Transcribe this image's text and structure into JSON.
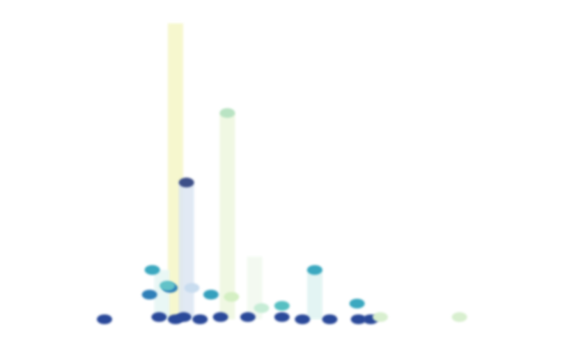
{
  "chart_data": {
    "type": "scatter",
    "title": "",
    "xlabel": "",
    "ylabel": "",
    "xlim": [
      0,
      35
    ],
    "ylim": [
      -0.3,
      7
    ],
    "grid": false,
    "legend": "none",
    "y_tick_count": 8,
    "x_tick_values": [
      5,
      15,
      25,
      35
    ],
    "points": [
      {
        "x": 5.0,
        "y": 0.0,
        "color": "#2a4a9a"
      },
      {
        "x": 8.5,
        "y": 1.1,
        "color": "#3aa8c0"
      },
      {
        "x": 8.3,
        "y": 0.55,
        "color": "#2e7fb8"
      },
      {
        "x": 9.0,
        "y": 0.05,
        "color": "#2a4a9a"
      },
      {
        "x": 9.8,
        "y": 0.7,
        "color": "#2e7fb8"
      },
      {
        "x": 9.6,
        "y": 0.75,
        "color": "#62c2c8"
      },
      {
        "x": 10.2,
        "y": 0.0,
        "color": "#2a4a9a"
      },
      {
        "x": 10.8,
        "y": 0.05,
        "color": "#2a4a9a"
      },
      {
        "x": 11.0,
        "y": 3.05,
        "color": "#3c4f88"
      },
      {
        "x": 11.4,
        "y": 0.7,
        "color": "#c8dcef"
      },
      {
        "x": 12.0,
        "y": 0.0,
        "color": "#2a4a9a"
      },
      {
        "x": 12.8,
        "y": 0.55,
        "color": "#35a0bd"
      },
      {
        "x": 13.5,
        "y": 0.05,
        "color": "#2a4a9a"
      },
      {
        "x": 14.0,
        "y": 4.6,
        "color": "#b9e3c3"
      },
      {
        "x": 14.3,
        "y": 0.5,
        "color": "#d4efc3"
      },
      {
        "x": 15.5,
        "y": 0.05,
        "color": "#2a4a9a"
      },
      {
        "x": 16.5,
        "y": 0.25,
        "color": "#c6ecd6"
      },
      {
        "x": 18.0,
        "y": 0.05,
        "color": "#2a4a9a"
      },
      {
        "x": 18.0,
        "y": 0.3,
        "color": "#56bfc2"
      },
      {
        "x": 19.5,
        "y": 0.0,
        "color": "#2a4a9a"
      },
      {
        "x": 20.4,
        "y": 1.1,
        "color": "#3aa8c0"
      },
      {
        "x": 21.5,
        "y": 0.0,
        "color": "#2a4a9a"
      },
      {
        "x": 23.5,
        "y": 0.35,
        "color": "#3aa8c0"
      },
      {
        "x": 23.6,
        "y": 0.0,
        "color": "#2a4a9a"
      },
      {
        "x": 24.5,
        "y": 0.0,
        "color": "#2a4a9a"
      },
      {
        "x": 25.2,
        "y": 0.05,
        "color": "#d8efcf"
      },
      {
        "x": 31.0,
        "y": 0.05,
        "color": "#d8efcf"
      }
    ],
    "bars": [
      {
        "x": 10.2,
        "low": 0.0,
        "high": 6.6,
        "color": "#f5f6c6"
      },
      {
        "x": 11.0,
        "low": 0.0,
        "high": 3.05,
        "color": "#dce6f3"
      },
      {
        "x": 14.0,
        "low": 0.0,
        "high": 4.6,
        "color": "#eef7df"
      },
      {
        "x": 20.4,
        "low": 0.0,
        "high": 1.1,
        "color": "#dff3f1"
      },
      {
        "x": 9.2,
        "low": 0.0,
        "high": 1.1,
        "color": "#e6f6f4"
      },
      {
        "x": 16.0,
        "low": 0.0,
        "high": 1.4,
        "color": "#f1f9ef"
      }
    ]
  }
}
